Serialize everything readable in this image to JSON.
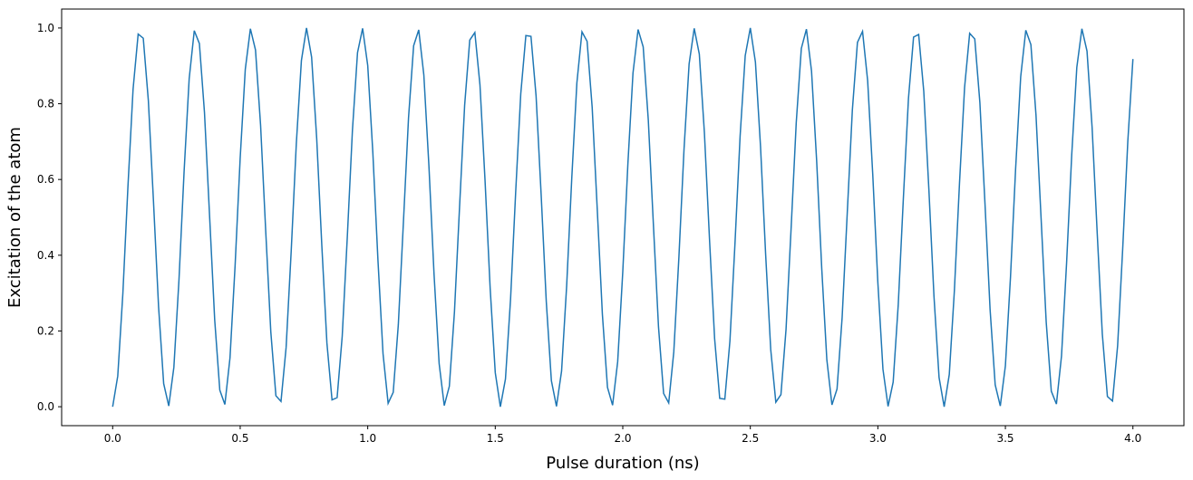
{
  "chart_data": {
    "type": "line",
    "xlabel": "Pulse duration (ns)",
    "ylabel": "Excitation of the atom",
    "xlim": [
      -0.2,
      4.2
    ],
    "ylim": [
      -0.05,
      1.05
    ],
    "xticks": [
      {
        "value": 0,
        "label": "0.0"
      },
      {
        "value": 0.5,
        "label": "0.5"
      },
      {
        "value": 1,
        "label": "1.0"
      },
      {
        "value": 1.5,
        "label": "1.5"
      },
      {
        "value": 2,
        "label": "2.0"
      },
      {
        "value": 2.5,
        "label": "2.5"
      },
      {
        "value": 3,
        "label": "3.0"
      },
      {
        "value": 3.5,
        "label": "3.5"
      },
      {
        "value": 4,
        "label": "4.0"
      }
    ],
    "yticks": [
      {
        "value": 0,
        "label": "0.0"
      },
      {
        "value": 0.2,
        "label": "0.2"
      },
      {
        "value": 0.4,
        "label": "0.4"
      },
      {
        "value": 0.6,
        "label": "0.6"
      },
      {
        "value": 0.8,
        "label": "0.8"
      },
      {
        "value": 1,
        "label": "1.0"
      }
    ],
    "grid": false,
    "x": [
      0,
      0.02,
      0.04,
      0.06,
      0.08,
      0.1,
      0.12,
      0.14,
      0.16,
      0.18,
      0.2,
      0.22,
      0.24,
      0.26,
      0.28,
      0.3,
      0.32,
      0.34,
      0.36,
      0.38,
      0.4,
      0.42,
      0.44,
      0.46,
      0.48,
      0.5,
      0.52,
      0.54,
      0.56,
      0.58,
      0.6,
      0.62,
      0.64,
      0.66,
      0.68,
      0.7,
      0.72,
      0.74,
      0.76,
      0.78,
      0.8,
      0.82,
      0.84,
      0.86,
      0.88,
      0.9,
      0.92,
      0.94,
      0.96,
      0.98,
      1,
      1.02,
      1.04,
      1.06,
      1.08,
      1.1,
      1.12,
      1.14,
      1.16,
      1.18,
      1.2,
      1.22,
      1.24,
      1.26,
      1.28,
      1.3,
      1.32,
      1.34,
      1.36,
      1.38,
      1.4,
      1.42,
      1.44,
      1.46,
      1.48,
      1.5,
      1.52,
      1.54,
      1.56,
      1.58,
      1.6,
      1.62,
      1.64,
      1.66,
      1.68,
      1.7,
      1.72,
      1.74,
      1.76,
      1.78,
      1.8,
      1.82,
      1.84,
      1.86,
      1.88,
      1.9,
      1.92,
      1.94,
      1.96,
      1.98,
      2,
      2.02,
      2.04,
      2.06,
      2.08,
      2.1,
      2.12,
      2.14,
      2.16,
      2.18,
      2.2,
      2.22,
      2.24,
      2.26,
      2.28,
      2.3,
      2.32,
      2.34,
      2.36,
      2.38,
      2.4,
      2.42,
      2.44,
      2.46,
      2.48,
      2.5,
      2.52,
      2.54,
      2.56,
      2.58,
      2.6,
      2.62,
      2.64,
      2.66,
      2.68,
      2.7,
      2.72,
      2.74,
      2.76,
      2.78,
      2.8,
      2.82,
      2.84,
      2.86,
      2.88,
      2.9,
      2.92,
      2.94,
      2.96,
      2.98,
      3,
      3.02,
      3.04,
      3.06,
      3.08,
      3.1,
      3.12,
      3.14,
      3.16,
      3.18,
      3.2,
      3.22,
      3.24,
      3.26,
      3.28,
      3.3,
      3.32,
      3.34,
      3.36,
      3.38,
      3.4,
      3.42,
      3.44,
      3.46,
      3.48,
      3.5,
      3.52,
      3.54,
      3.56,
      3.58,
      3.6,
      3.62,
      3.64,
      3.66,
      3.68,
      3.7,
      3.72,
      3.74,
      3.76,
      3.78,
      3.8,
      3.82,
      3.84,
      3.86,
      3.88,
      3.9,
      3.92,
      3.94,
      3.96,
      3.98,
      4
    ],
    "series": [
      {
        "color": "#1f77b4",
        "values": [
          0,
          0.081,
          0.299,
          0.582,
          0.838,
          0.984,
          0.973,
          0.808,
          0.543,
          0.264,
          0.061,
          0.002,
          0.104,
          0.335,
          0.62,
          0.866,
          0.993,
          0.959,
          0.777,
          0.504,
          0.23,
          0.044,
          0.006,
          0.129,
          0.372,
          0.657,
          0.891,
          0.998,
          0.942,
          0.743,
          0.465,
          0.198,
          0.029,
          0.014,
          0.156,
          0.411,
          0.694,
          0.914,
          1,
          0.923,
          0.708,
          0.426,
          0.168,
          0.018,
          0.024,
          0.186,
          0.449,
          0.729,
          0.935,
          0.999,
          0.901,
          0.672,
          0.388,
          0.14,
          0.009,
          0.038,
          0.217,
          0.488,
          0.763,
          0.953,
          0.995,
          0.876,
          0.635,
          0.35,
          0.114,
          0.003,
          0.054,
          0.25,
          0.527,
          0.796,
          0.968,
          0.988,
          0.85,
          0.597,
          0.313,
          0.09,
          0,
          0.073,
          0.284,
          0.566,
          0.826,
          0.98,
          0.978,
          0.821,
          0.559,
          0.278,
          0.069,
          0.001,
          0.094,
          0.32,
          0.604,
          0.855,
          0.99,
          0.965,
          0.79,
          0.52,
          0.244,
          0.051,
          0.004,
          0.119,
          0.357,
          0.642,
          0.881,
          0.996,
          0.95,
          0.757,
          0.481,
          0.211,
          0.035,
          0.01,
          0.145,
          0.395,
          0.679,
          0.905,
          0.999,
          0.931,
          0.723,
          0.442,
          0.18,
          0.022,
          0.02,
          0.173,
          0.433,
          0.715,
          0.927,
          1,
          0.91,
          0.687,
          0.403,
          0.151,
          0.012,
          0.032,
          0.204,
          0.472,
          0.75,
          0.946,
          0.997,
          0.886,
          0.65,
          0.365,
          0.124,
          0.005,
          0.047,
          0.236,
          0.511,
          0.783,
          0.962,
          0.991,
          0.861,
          0.613,
          0.328,
          0.099,
          0.001,
          0.065,
          0.27,
          0.55,
          0.814,
          0.976,
          0.983,
          0.833,
          0.574,
          0.292,
          0.077,
          0,
          0.085,
          0.306,
          0.589,
          0.843,
          0.986,
          0.971,
          0.803,
          0.536,
          0.257,
          0.058,
          0.002,
          0.108,
          0.342,
          0.627,
          0.871,
          0.994,
          0.956,
          0.77,
          0.497,
          0.224,
          0.041,
          0.007,
          0.134,
          0.38,
          0.664,
          0.896,
          0.998,
          0.939,
          0.737,
          0.458,
          0.192,
          0.027,
          0.015,
          0.161,
          0.418,
          0.701,
          0.918
        ]
      }
    ]
  }
}
